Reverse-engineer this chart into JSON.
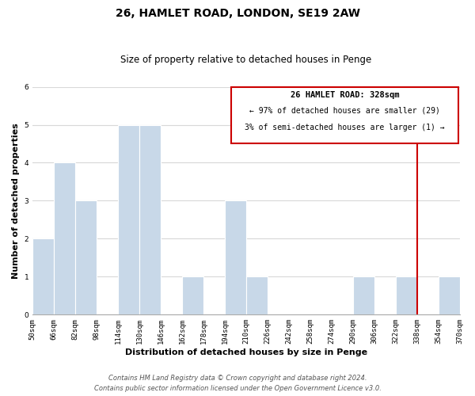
{
  "title": "26, HAMLET ROAD, LONDON, SE19 2AW",
  "subtitle": "Size of property relative to detached houses in Penge",
  "xlabel": "Distribution of detached houses by size in Penge",
  "ylabel": "Number of detached properties",
  "bins": [
    50,
    66,
    82,
    98,
    114,
    130,
    146,
    162,
    178,
    194,
    210,
    226,
    242,
    258,
    274,
    290,
    306,
    322,
    338,
    354,
    370
  ],
  "counts": [
    2,
    4,
    3,
    0,
    5,
    5,
    0,
    1,
    0,
    3,
    1,
    0,
    0,
    0,
    0,
    1,
    0,
    1,
    0,
    1
  ],
  "bar_color": "#c8d8e8",
  "grid_color": "#d8d8d8",
  "ref_line_value": 322,
  "ref_line_color": "#cc0000",
  "annotation_box_color": "#cc0000",
  "annotation_title": "26 HAMLET ROAD: 328sqm",
  "annotation_line1": "← 97% of detached houses are smaller (29)",
  "annotation_line2": "3% of semi-detached houses are larger (1) →",
  "ylim": [
    0,
    6
  ],
  "yticks": [
    0,
    1,
    2,
    3,
    4,
    5,
    6
  ],
  "tick_labels": [
    "50sqm",
    "66sqm",
    "82sqm",
    "98sqm",
    "114sqm",
    "130sqm",
    "146sqm",
    "162sqm",
    "178sqm",
    "194sqm",
    "210sqm",
    "226sqm",
    "242sqm",
    "258sqm",
    "274sqm",
    "290sqm",
    "306sqm",
    "322sqm",
    "338sqm",
    "354sqm",
    "370sqm"
  ],
  "footer_line1": "Contains HM Land Registry data © Crown copyright and database right 2024.",
  "footer_line2": "Contains public sector information licensed under the Open Government Licence v3.0.",
  "title_fontsize": 10,
  "subtitle_fontsize": 8.5,
  "axis_label_fontsize": 8,
  "tick_fontsize": 6.5,
  "annotation_fontsize": 7.5,
  "footer_fontsize": 6
}
